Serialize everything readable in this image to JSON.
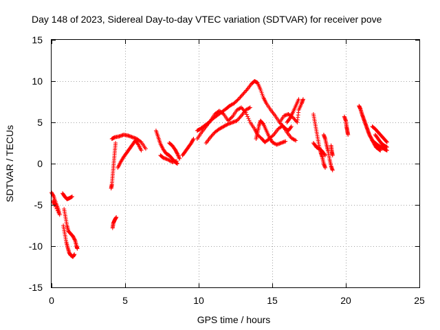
{
  "chart_data": {
    "type": "scatter",
    "title": "Day 148 of 2023, Sidereal Day-to-day VTEC variation (SDTVAR) for receiver pove",
    "xlabel": "GPS time / hours",
    "ylabel": "SDTVAR / TECUs",
    "xlim": [
      0,
      25
    ],
    "ylim": [
      -15,
      15
    ],
    "xticks": [
      0,
      5,
      10,
      15,
      20,
      25
    ],
    "yticks": [
      -15,
      -10,
      -5,
      0,
      5,
      10,
      15
    ],
    "xtick_labels": [
      "0",
      "5",
      "10",
      "15",
      "20",
      "25"
    ],
    "ytick_labels": [
      "-15",
      "-10",
      "-5",
      "0",
      "5",
      "10",
      "15"
    ],
    "grid": true,
    "marker": "+",
    "series": [
      {
        "name": "SDTVAR",
        "color": "#ff0000",
        "segments": [
          [
            [
              0.0,
              -3.5
            ],
            [
              0.15,
              -4.0
            ],
            [
              0.3,
              -4.8
            ],
            [
              0.45,
              -5.5
            ],
            [
              0.55,
              -6.2
            ],
            [
              0.2,
              -5.0
            ],
            [
              0.1,
              -4.5
            ]
          ],
          [
            [
              0.75,
              -3.6
            ],
            [
              0.9,
              -4.0
            ],
            [
              1.05,
              -4.3
            ],
            [
              1.2,
              -4.2
            ],
            [
              1.4,
              -4.0
            ]
          ],
          [
            [
              0.8,
              -7.5
            ],
            [
              0.9,
              -8.5
            ],
            [
              1.0,
              -9.5
            ],
            [
              1.1,
              -10.2
            ],
            [
              1.2,
              -10.8
            ],
            [
              1.3,
              -11.1
            ],
            [
              1.45,
              -11.3
            ],
            [
              1.55,
              -11.0
            ]
          ],
          [
            [
              0.85,
              -5.5
            ],
            [
              0.95,
              -6.5
            ],
            [
              1.05,
              -7.5
            ],
            [
              1.15,
              -8.2
            ],
            [
              1.3,
              -8.5
            ],
            [
              1.45,
              -8.8
            ],
            [
              1.6,
              -9.3
            ],
            [
              1.7,
              -10.0
            ],
            [
              1.75,
              -10.3
            ]
          ],
          [
            [
              4.15,
              -7.8
            ],
            [
              4.2,
              -7.2
            ],
            [
              4.3,
              -6.8
            ],
            [
              4.4,
              -6.5
            ]
          ],
          [
            [
              4.05,
              -3.0
            ],
            [
              4.1,
              -2.5
            ],
            [
              4.15,
              -1.5
            ],
            [
              4.2,
              -0.5
            ],
            [
              4.25,
              0.5
            ],
            [
              4.3,
              1.5
            ],
            [
              4.35,
              2.5
            ]
          ],
          [
            [
              4.1,
              3.0
            ],
            [
              4.3,
              3.2
            ],
            [
              4.6,
              3.3
            ],
            [
              4.9,
              3.5
            ],
            [
              5.2,
              3.4
            ],
            [
              5.5,
              3.2
            ],
            [
              5.8,
              3.0
            ],
            [
              6.1,
              2.6
            ],
            [
              6.4,
              1.8
            ]
          ],
          [
            [
              4.5,
              -0.5
            ],
            [
              4.7,
              0.2
            ],
            [
              4.9,
              0.8
            ],
            [
              5.1,
              1.3
            ],
            [
              5.3,
              1.8
            ],
            [
              5.5,
              2.3
            ],
            [
              5.7,
              2.8
            ],
            [
              5.9,
              2.3
            ],
            [
              6.1,
              1.6
            ]
          ],
          [
            [
              7.1,
              4.0
            ],
            [
              7.25,
              3.2
            ],
            [
              7.4,
              2.4
            ],
            [
              7.6,
              1.7
            ],
            [
              7.8,
              1.2
            ],
            [
              8.0,
              1.0
            ],
            [
              8.2,
              0.6
            ],
            [
              8.4,
              0.2
            ],
            [
              8.55,
              0.0
            ]
          ],
          [
            [
              7.4,
              1.0
            ],
            [
              7.6,
              0.7
            ],
            [
              7.9,
              0.5
            ],
            [
              8.2,
              0.2
            ],
            [
              8.5,
              0.3
            ]
          ],
          [
            [
              8.0,
              2.5
            ],
            [
              8.2,
              2.2
            ],
            [
              8.4,
              1.7
            ],
            [
              8.55,
              1.2
            ],
            [
              8.7,
              0.6
            ]
          ],
          [
            [
              8.9,
              1.0
            ],
            [
              9.1,
              1.5
            ],
            [
              9.3,
              2.0
            ],
            [
              9.5,
              2.5
            ],
            [
              9.65,
              3.0
            ]
          ],
          [
            [
              9.9,
              4.0
            ],
            [
              10.1,
              4.2
            ],
            [
              10.4,
              4.6
            ],
            [
              10.7,
              5.0
            ],
            [
              11.0,
              5.5
            ],
            [
              11.3,
              5.9
            ],
            [
              11.6,
              6.3
            ],
            [
              11.9,
              6.7
            ],
            [
              12.1,
              7.0
            ],
            [
              12.4,
              7.3
            ],
            [
              12.7,
              7.8
            ],
            [
              13.0,
              8.4
            ],
            [
              13.3,
              9.0
            ],
            [
              13.6,
              9.7
            ],
            [
              13.8,
              10.0
            ],
            [
              14.0,
              9.8
            ],
            [
              14.2,
              9.0
            ],
            [
              14.4,
              8.0
            ],
            [
              14.6,
              7.3
            ],
            [
              14.9,
              6.5
            ],
            [
              15.2,
              5.8
            ],
            [
              15.5,
              5.0
            ],
            [
              15.8,
              4.4
            ],
            [
              16.1,
              4.0
            ],
            [
              16.3,
              4.5
            ]
          ],
          [
            [
              9.9,
              3.0
            ],
            [
              10.2,
              3.8
            ],
            [
              10.5,
              4.5
            ],
            [
              10.8,
              5.2
            ],
            [
              11.1,
              6.0
            ],
            [
              11.4,
              6.4
            ],
            [
              11.7,
              6.0
            ],
            [
              12.0,
              5.2
            ],
            [
              12.3,
              5.7
            ],
            [
              12.6,
              6.5
            ],
            [
              12.9,
              6.8
            ],
            [
              13.2,
              6.2
            ],
            [
              13.5,
              5.0
            ],
            [
              13.8,
              4.2
            ],
            [
              14.0,
              3.5
            ],
            [
              14.3,
              3.0
            ],
            [
              14.5,
              2.6
            ],
            [
              14.8,
              3.0
            ],
            [
              15.1,
              3.5
            ],
            [
              15.4,
              4.2
            ],
            [
              15.7,
              4.6
            ],
            [
              16.0,
              3.8
            ],
            [
              16.3,
              3.1
            ],
            [
              16.6,
              2.8
            ]
          ],
          [
            [
              10.5,
              2.5
            ],
            [
              10.8,
              3.2
            ],
            [
              11.1,
              3.8
            ],
            [
              11.4,
              4.2
            ],
            [
              11.7,
              4.5
            ],
            [
              12.0,
              4.8
            ],
            [
              12.3,
              5.0
            ],
            [
              12.6,
              5.2
            ],
            [
              12.9,
              5.8
            ],
            [
              13.2,
              6.5
            ],
            [
              13.5,
              6.8
            ]
          ],
          [
            [
              13.9,
              3.0
            ],
            [
              14.0,
              3.8
            ],
            [
              14.1,
              4.6
            ],
            [
              14.2,
              5.2
            ],
            [
              14.4,
              4.8
            ],
            [
              14.6,
              4.0
            ],
            [
              14.8,
              3.2
            ],
            [
              15.0,
              2.6
            ],
            [
              15.3,
              2.3
            ],
            [
              15.6,
              2.5
            ],
            [
              15.9,
              2.7
            ]
          ],
          [
            [
              15.5,
              5.0
            ],
            [
              15.8,
              5.8
            ],
            [
              16.1,
              6.0
            ],
            [
              16.4,
              5.6
            ],
            [
              16.7,
              5.0
            ],
            [
              16.8,
              6.5
            ],
            [
              17.0,
              7.3
            ],
            [
              17.1,
              7.8
            ]
          ],
          [
            [
              16.0,
              5.0
            ],
            [
              16.2,
              5.5
            ],
            [
              16.4,
              6.2
            ],
            [
              16.6,
              7.0
            ],
            [
              16.8,
              7.8
            ]
          ],
          [
            [
              17.8,
              6.0
            ],
            [
              17.9,
              5.0
            ],
            [
              18.0,
              4.0
            ],
            [
              18.1,
              3.0
            ],
            [
              18.2,
              2.0
            ],
            [
              18.3,
              1.3
            ],
            [
              18.4,
              0.8
            ],
            [
              18.5,
              0.0
            ],
            [
              18.6,
              -0.5
            ]
          ],
          [
            [
              18.5,
              3.5
            ],
            [
              18.6,
              3.0
            ],
            [
              18.7,
              2.2
            ],
            [
              18.8,
              1.5
            ],
            [
              18.9,
              0.5
            ],
            [
              19.0,
              -0.3
            ],
            [
              19.1,
              -0.8
            ]
          ],
          [
            [
              17.8,
              2.5
            ],
            [
              18.0,
              2.0
            ],
            [
              18.2,
              1.8
            ],
            [
              18.4,
              1.5
            ],
            [
              18.6,
              1.0
            ]
          ],
          [
            [
              19.0,
              2.2
            ],
            [
              19.05,
              1.5
            ],
            [
              19.1,
              1.0
            ]
          ],
          [
            [
              19.9,
              5.7
            ],
            [
              20.0,
              5.2
            ],
            [
              20.05,
              4.5
            ],
            [
              20.1,
              4.0
            ],
            [
              20.15,
              3.5
            ]
          ],
          [
            [
              20.9,
              7.0
            ],
            [
              21.0,
              6.6
            ],
            [
              21.1,
              6.0
            ],
            [
              21.2,
              5.5
            ],
            [
              21.3,
              5.0
            ],
            [
              21.4,
              4.5
            ],
            [
              21.5,
              4.0
            ],
            [
              21.6,
              3.5
            ],
            [
              21.75,
              3.0
            ],
            [
              21.9,
              2.5
            ],
            [
              22.05,
              2.0
            ],
            [
              22.2,
              1.8
            ],
            [
              22.35,
              1.6
            ]
          ],
          [
            [
              21.8,
              4.5
            ],
            [
              22.0,
              4.2
            ],
            [
              22.2,
              3.8
            ],
            [
              22.4,
              3.4
            ],
            [
              22.6,
              3.0
            ],
            [
              22.8,
              2.6
            ]
          ],
          [
            [
              21.8,
              2.8
            ],
            [
              22.0,
              2.5
            ],
            [
              22.2,
              2.2
            ],
            [
              22.4,
              2.0
            ],
            [
              22.6,
              1.8
            ],
            [
              22.8,
              1.6
            ]
          ],
          [
            [
              22.0,
              3.5
            ],
            [
              22.2,
              3.0
            ],
            [
              22.4,
              2.5
            ],
            [
              22.6,
              2.2
            ],
            [
              22.8,
              2.0
            ]
          ]
        ]
      }
    ]
  }
}
